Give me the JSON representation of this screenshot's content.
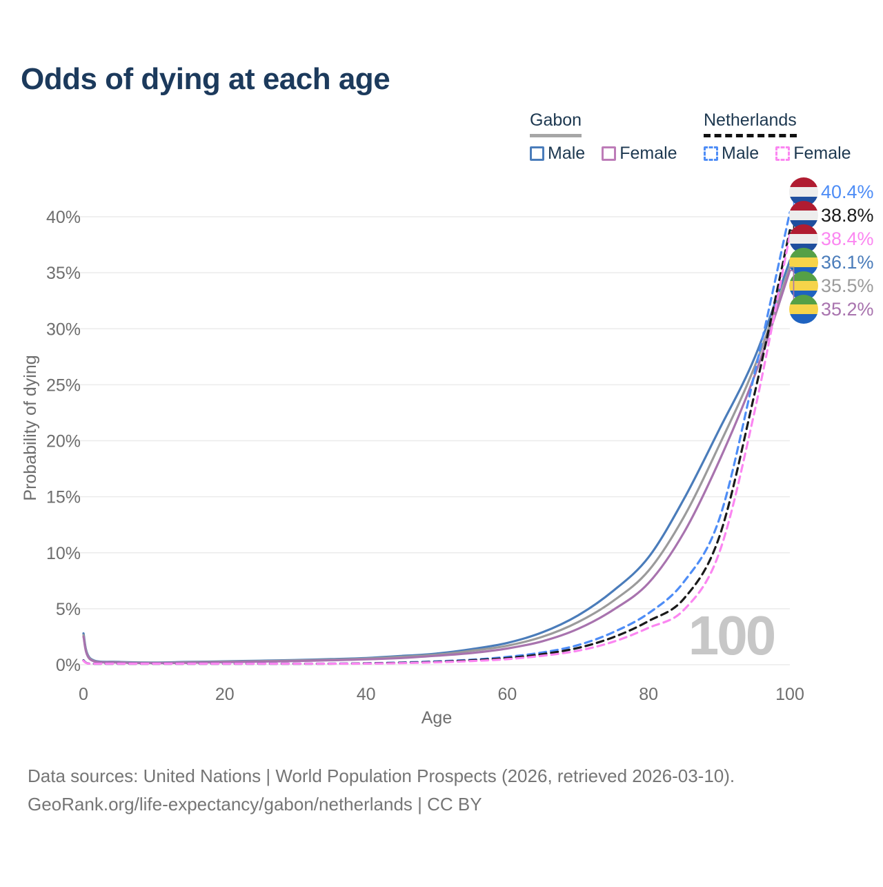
{
  "title": "Odds of dying at each age",
  "legend": {
    "groups": [
      {
        "name": "Gabon",
        "line_style": "solid",
        "underline_color": "#a6a6a6",
        "items": [
          {
            "label": "Male",
            "color": "#4a7cba"
          },
          {
            "label": "Female",
            "color": "#bd7cb8"
          }
        ]
      },
      {
        "name": "Netherlands",
        "line_style": "dashed",
        "underline_color": "#111111",
        "items": [
          {
            "label": "Male",
            "color": "#4e8df6"
          },
          {
            "label": "Female",
            "color": "#fb86f1"
          }
        ]
      }
    ]
  },
  "chart_data": {
    "type": "line",
    "title": "Odds of dying at each age",
    "xlabel": "Age",
    "ylabel": "Probability of dying",
    "xlim": [
      0,
      100
    ],
    "ylim": [
      0,
      42
    ],
    "x_ticks": [
      0,
      20,
      40,
      60,
      80,
      100
    ],
    "y_ticks_pct": [
      0,
      5,
      10,
      15,
      20,
      25,
      30,
      35,
      40
    ],
    "y_tick_suffix": "%",
    "grid": "horizontal",
    "legend_position": "top-right",
    "watermark": "100",
    "x": [
      0,
      1,
      5,
      10,
      15,
      20,
      25,
      30,
      35,
      40,
      45,
      50,
      55,
      60,
      65,
      70,
      75,
      80,
      85,
      90,
      95,
      100
    ],
    "series": [
      {
        "name": "Gabon Male",
        "slug": "gabon-male",
        "flag": "gabon",
        "color": "#4a7cba",
        "dashed": false,
        "end_label": "36.1%",
        "end_value": 36.1,
        "values": [
          2.8,
          0.55,
          0.25,
          0.2,
          0.25,
          0.3,
          0.36,
          0.42,
          0.5,
          0.6,
          0.78,
          1.0,
          1.4,
          1.95,
          2.9,
          4.4,
          6.6,
          9.6,
          14.8,
          21.0,
          27.4,
          36.1
        ]
      },
      {
        "name": "Gabon Both sexes",
        "slug": "gabon-both",
        "flag": "gabon",
        "color": "#9b9b9b",
        "dashed": false,
        "end_label": "35.5%",
        "end_value": 35.5,
        "values": [
          2.65,
          0.5,
          0.22,
          0.17,
          0.22,
          0.27,
          0.32,
          0.38,
          0.45,
          0.54,
          0.7,
          0.9,
          1.25,
          1.7,
          2.5,
          3.8,
          5.7,
          8.4,
          13.2,
          19.6,
          26.6,
          35.5
        ]
      },
      {
        "name": "Gabon Female",
        "slug": "gabon-female",
        "flag": "gabon",
        "color": "#a873ae",
        "dashed": false,
        "end_label": "35.2%",
        "end_value": 35.2,
        "values": [
          2.5,
          0.45,
          0.2,
          0.15,
          0.18,
          0.23,
          0.28,
          0.33,
          0.4,
          0.48,
          0.6,
          0.8,
          1.05,
          1.45,
          2.1,
          3.2,
          4.9,
          7.3,
          11.8,
          18.2,
          25.8,
          35.2
        ]
      },
      {
        "name": "Netherlands Male",
        "slug": "netherlands-male",
        "flag": "netherlands",
        "color": "#4e8df6",
        "dashed": true,
        "end_label": "40.4%",
        "end_value": 40.4,
        "values": [
          0.4,
          0.04,
          0.01,
          0.01,
          0.04,
          0.06,
          0.07,
          0.08,
          0.1,
          0.13,
          0.2,
          0.3,
          0.45,
          0.7,
          1.1,
          1.75,
          2.9,
          4.6,
          7.4,
          13.0,
          26.0,
          40.4
        ]
      },
      {
        "name": "Netherlands Both sexes",
        "slug": "netherlands-both",
        "flag": "netherlands",
        "color": "#1a1a1a",
        "dashed": true,
        "end_label": "38.8%",
        "end_value": 38.8,
        "values": [
          0.38,
          0.035,
          0.01,
          0.01,
          0.035,
          0.05,
          0.06,
          0.07,
          0.09,
          0.12,
          0.17,
          0.26,
          0.4,
          0.6,
          0.95,
          1.5,
          2.45,
          3.9,
          5.9,
          11.4,
          24.2,
          38.8
        ]
      },
      {
        "name": "Netherlands Female",
        "slug": "netherlands-female",
        "flag": "netherlands",
        "color": "#fb86f1",
        "dashed": true,
        "end_label": "38.4%",
        "end_value": 38.4,
        "values": [
          0.35,
          0.03,
          0.01,
          0.01,
          0.03,
          0.04,
          0.05,
          0.06,
          0.08,
          0.1,
          0.14,
          0.22,
          0.33,
          0.5,
          0.8,
          1.25,
          2.05,
          3.3,
          4.9,
          10.0,
          22.6,
          38.4
        ]
      }
    ],
    "flags": {
      "netherlands": [
        "#b01c31",
        "#ededed",
        "#1f4f9e"
      ],
      "gabon": [
        "#55a046",
        "#f6d44a",
        "#1f63c0"
      ]
    }
  },
  "footer": {
    "line1": "Data sources: United Nations | World Population Prospects (2026, retrieved 2026-03-10).",
    "line2": "GeoRank.org/life-expectancy/gabon/netherlands | CC BY"
  }
}
